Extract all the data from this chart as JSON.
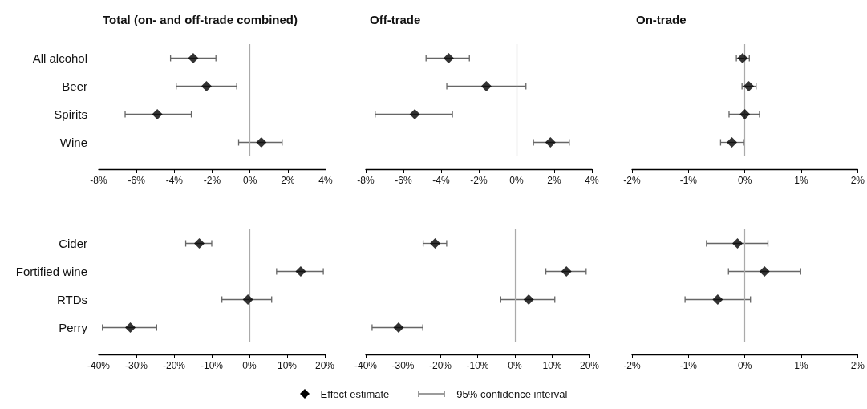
{
  "chart_data": [
    {
      "type": "scatter",
      "title": "Total (on- and off-trade combined)",
      "orientation": "horizontal",
      "categories": [
        "All alcohol",
        "Beer",
        "Spirits",
        "Wine"
      ],
      "series": [
        {
          "name": "Effect estimate",
          "color": "#000000",
          "values": [
            -3.0,
            -2.3,
            -4.9,
            0.6
          ],
          "errors": [
            [
              -4.2,
              -1.8
            ],
            [
              -3.9,
              -0.7
            ],
            [
              -6.6,
              -3.1
            ],
            [
              -0.6,
              1.7
            ]
          ]
        }
      ],
      "xlim": [
        -8,
        4
      ],
      "xticks": [
        {
          "value": -8,
          "label": "-8%"
        },
        {
          "value": -6,
          "label": "-6%"
        },
        {
          "value": -4,
          "label": "-4%"
        },
        {
          "value": -2,
          "label": "-2%"
        },
        {
          "value": 0,
          "label": "0%"
        },
        {
          "value": 2,
          "label": "2%"
        },
        {
          "value": 4,
          "label": "4%"
        }
      ],
      "ref_lines": [
        {
          "axis": "x",
          "value": 0
        }
      ],
      "marker": "diamond",
      "grid": false,
      "legend": "bottom",
      "annotations": [
        "95% confidence interval"
      ]
    },
    {
      "type": "scatter",
      "title": "Off-trade",
      "orientation": "horizontal",
      "tick_labels": "x",
      "series": [
        {
          "color": "#000000",
          "values": [
            -3.6,
            -1.6,
            -5.4,
            1.8
          ],
          "errors": [
            [
              -4.8,
              -2.5
            ],
            [
              -3.7,
              0.5
            ],
            [
              -7.5,
              -3.4
            ],
            [
              0.9,
              2.8
            ]
          ]
        }
      ],
      "xlim": [
        -8,
        4
      ],
      "xticks": [
        {
          "value": -8,
          "label": "-8%"
        },
        {
          "value": -6,
          "label": "-6%"
        },
        {
          "value": -4,
          "label": "-4%"
        },
        {
          "value": -2,
          "label": "-2%"
        },
        {
          "value": 0,
          "label": "0%"
        },
        {
          "value": 2,
          "label": "2%"
        },
        {
          "value": 4,
          "label": "4%"
        }
      ],
      "ref_lines": [
        {
          "axis": "x",
          "value": 0
        }
      ],
      "marker": "diamond",
      "grid": false
    },
    {
      "type": "scatter",
      "title": "On-trade",
      "orientation": "horizontal",
      "tick_labels": "x",
      "series": [
        {
          "color": "#000000",
          "values": [
            -0.04,
            0.07,
            0.0,
            -0.23
          ],
          "errors": [
            [
              -0.15,
              0.08
            ],
            [
              -0.05,
              0.2
            ],
            [
              -0.28,
              0.26
            ],
            [
              -0.43,
              -0.01
            ]
          ]
        }
      ],
      "xlim": [
        -2,
        2
      ],
      "xticks": [
        {
          "value": -2,
          "label": "-2%"
        },
        {
          "value": -1,
          "label": "-1%"
        },
        {
          "value": 0,
          "label": "0%"
        },
        {
          "value": 1,
          "label": "1%"
        },
        {
          "value": 2,
          "label": "2%"
        }
      ],
      "ref_lines": [
        {
          "axis": "x",
          "value": 0
        }
      ],
      "marker": "diamond",
      "grid": false
    },
    {
      "type": "scatter",
      "orientation": "horizontal",
      "categories": [
        "Cider",
        "Fortified wine",
        "RTDs",
        "Perry"
      ],
      "series": [
        {
          "color": "#000000",
          "values": [
            -13.3,
            13.6,
            -0.4,
            -31.6
          ],
          "errors": [
            [
              -16.9,
              -10.0
            ],
            [
              7.2,
              19.6
            ],
            [
              -7.3,
              5.9
            ],
            [
              -39.0,
              -24.6
            ]
          ]
        }
      ],
      "xlim": [
        -40,
        20
      ],
      "xticks": [
        {
          "value": -40,
          "label": "-40%"
        },
        {
          "value": -30,
          "label": "-30%"
        },
        {
          "value": -20,
          "label": "-20%"
        },
        {
          "value": -10,
          "label": "-10%"
        },
        {
          "value": 0,
          "label": "0%"
        },
        {
          "value": 10,
          "label": "10%"
        },
        {
          "value": 20,
          "label": "20%"
        }
      ],
      "ref_lines": [
        {
          "axis": "x",
          "value": 0
        }
      ],
      "marker": "diamond",
      "grid": false
    },
    {
      "type": "scatter",
      "orientation": "horizontal",
      "tick_labels": "x",
      "series": [
        {
          "color": "#000000",
          "values": [
            -21.4,
            13.8,
            3.7,
            -31.2
          ],
          "errors": [
            [
              -24.6,
              -18.3
            ],
            [
              8.3,
              19.1
            ],
            [
              -3.8,
              10.7
            ],
            [
              -38.3,
              -24.7
            ]
          ]
        }
      ],
      "xlim": [
        -40,
        20
      ],
      "xticks": [
        {
          "value": -40,
          "label": "-40%"
        },
        {
          "value": -30,
          "label": "-30%"
        },
        {
          "value": -20,
          "label": "-20%"
        },
        {
          "value": -10,
          "label": "-10%"
        },
        {
          "value": 0,
          "label": "0%"
        },
        {
          "value": 10,
          "label": "10%"
        },
        {
          "value": 20,
          "label": "20%"
        }
      ],
      "ref_lines": [
        {
          "axis": "x",
          "value": 0
        }
      ],
      "marker": "diamond",
      "grid": false
    },
    {
      "type": "scatter",
      "orientation": "horizontal",
      "tick_labels": "x",
      "series": [
        {
          "color": "#000000",
          "values": [
            -0.13,
            0.35,
            -0.48,
            null
          ],
          "errors": [
            [
              -0.68,
              0.41
            ],
            [
              -0.29,
              0.99
            ],
            [
              -1.06,
              0.1
            ],
            null
          ]
        }
      ],
      "xlim": [
        -2,
        2
      ],
      "xticks": [
        {
          "value": -2,
          "label": "-2%"
        },
        {
          "value": -1,
          "label": "-1%"
        },
        {
          "value": 0,
          "label": "0%"
        },
        {
          "value": 1,
          "label": "1%"
        },
        {
          "value": 2,
          "label": "2%"
        }
      ],
      "ref_lines": [
        {
          "axis": "x",
          "value": 0
        }
      ],
      "marker": "diamond",
      "grid": false
    }
  ]
}
